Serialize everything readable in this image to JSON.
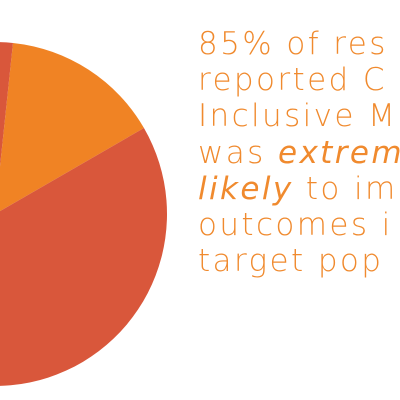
{
  "colors": {
    "highlight_slice": "#d9573b",
    "other_slice": "#f08324",
    "text": "#f08a2e",
    "background": "#ffffff"
  },
  "chart_data": {
    "type": "pie",
    "title": "",
    "slices": [
      {
        "label": "",
        "value": 85,
        "color": "#d9573b"
      },
      {
        "label": "",
        "value": 15,
        "color": "#f08324"
      }
    ]
  },
  "statement": {
    "line1": "85% of res",
    "line2": "reported C",
    "line3": "Inclusive M",
    "line4_plain": "was ",
    "line4_emph": "extrem",
    "line5_emph": "likely",
    "line5_plain": " to im",
    "line6": "outcomes i",
    "line7": "target pop"
  }
}
